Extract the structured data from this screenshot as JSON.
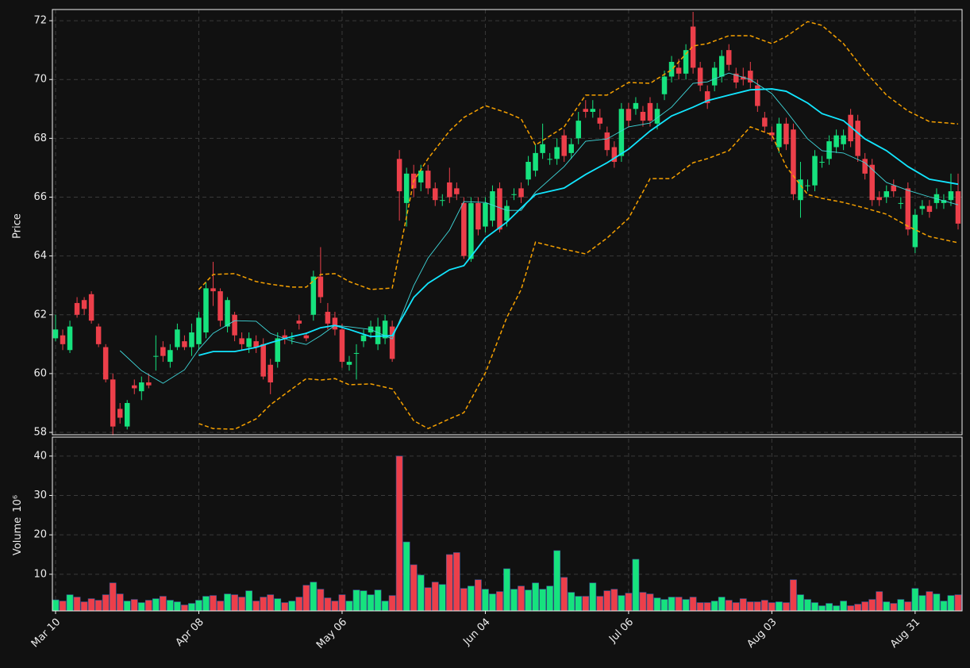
{
  "chart_data": {
    "type": "candlestick",
    "ylabel": "Price",
    "volume_label": "Volume",
    "volume_unit": "10⁶",
    "up_color": "#16e27e",
    "down_color": "#ec3f4a",
    "ylim": [
      57.92,
      72.38
    ],
    "yticks": [
      58,
      60,
      62,
      64,
      66,
      68,
      70,
      72
    ],
    "volume_ylim": [
      0.7,
      44.4
    ],
    "volume_yticks": [
      10,
      20,
      30,
      40
    ],
    "grid": true,
    "categories": [
      "Mar 10",
      null,
      null,
      null,
      null,
      null,
      null,
      null,
      null,
      null,
      null,
      null,
      null,
      null,
      null,
      null,
      null,
      null,
      null,
      null,
      "Apr 08",
      null,
      null,
      null,
      null,
      null,
      null,
      null,
      null,
      null,
      null,
      null,
      null,
      null,
      null,
      null,
      null,
      null,
      null,
      null,
      "May 06",
      null,
      null,
      null,
      null,
      null,
      null,
      null,
      null,
      null,
      null,
      null,
      null,
      null,
      null,
      null,
      null,
      null,
      null,
      null,
      "Jun 04",
      null,
      null,
      null,
      null,
      null,
      null,
      null,
      null,
      null,
      null,
      null,
      null,
      null,
      null,
      null,
      null,
      null,
      null,
      null,
      "Jul 06",
      null,
      null,
      null,
      null,
      null,
      null,
      null,
      null,
      null,
      null,
      null,
      null,
      null,
      null,
      null,
      null,
      null,
      null,
      null,
      "Aug 03",
      null,
      null,
      null,
      null,
      null,
      null,
      null,
      null,
      null,
      null,
      null,
      null,
      null,
      null,
      null,
      null,
      null,
      null,
      null,
      "Aug 31",
      null,
      null,
      null,
      null,
      null,
      null
    ],
    "open": [
      61.2,
      61.3,
      60.8,
      62.4,
      62.5,
      62.7,
      61.6,
      60.9,
      59.8,
      58.8,
      58.2,
      59.6,
      59.4,
      59.7,
      60.6,
      60.9,
      60.4,
      60.9,
      61.1,
      60.9,
      61.0,
      61.4,
      62.9,
      62.8,
      61.6,
      62.0,
      61.2,
      60.9,
      61.1,
      61.0,
      60.3,
      60.4,
      61.3,
      61.2,
      61.8,
      61.3,
      62.0,
      63.3,
      62.1,
      61.9,
      61.5,
      60.3,
      60.7,
      61.1,
      61.4,
      61.0,
      61.2,
      61.6,
      67.3,
      65.8,
      66.8,
      66.5,
      66.9,
      66.3,
      65.9,
      66.5,
      66.3,
      65.8,
      63.9,
      65.8,
      65.0,
      65.2,
      66.3,
      65.2,
      66.1,
      66.3,
      66.6,
      66.9,
      67.5,
      67.3,
      67.3,
      68.1,
      67.5,
      68.0,
      69.0,
      68.9,
      68.7,
      68.2,
      67.7,
      67.4,
      69.0,
      69.0,
      68.9,
      69.2,
      68.5,
      69.5,
      70.1,
      70.4,
      70.2,
      71.8,
      70.4,
      69.6,
      69.8,
      70.1,
      71.0,
      70.2,
      70.1,
      70.3,
      69.8,
      68.7,
      68.2,
      67.7,
      68.5,
      68.3,
      65.9,
      66.4,
      66.4,
      67.2,
      67.3,
      67.7,
      67.8,
      68.8,
      68.6,
      67.3,
      67.1,
      66.0,
      66.0,
      66.4,
      65.8,
      66.3,
      64.3,
      65.6,
      65.7,
      65.8,
      65.8,
      65.9,
      66.2
    ],
    "high": [
      62.0,
      61.5,
      61.8,
      62.6,
      62.6,
      62.8,
      61.7,
      61.0,
      60.0,
      59.0,
      59.1,
      59.8,
      59.9,
      60.0,
      61.3,
      61.1,
      61.0,
      61.7,
      61.3,
      61.7,
      62.1,
      63.1,
      63.8,
      62.9,
      62.6,
      62.1,
      61.4,
      61.4,
      61.3,
      61.2,
      60.5,
      61.4,
      61.5,
      61.4,
      62.0,
      61.4,
      63.5,
      64.3,
      62.4,
      62.1,
      61.7,
      60.6,
      61.0,
      61.5,
      61.8,
      61.9,
      62.0,
      61.8,
      67.6,
      67.0,
      67.1,
      67.1,
      67.1,
      66.5,
      66.1,
      67.0,
      66.5,
      66.0,
      66.0,
      66.0,
      66.0,
      66.4,
      66.5,
      65.9,
      66.3,
      66.5,
      67.4,
      67.8,
      68.5,
      67.5,
      68.0,
      68.3,
      68.0,
      68.9,
      69.3,
      69.3,
      69.0,
      68.4,
      67.9,
      69.2,
      69.2,
      69.4,
      69.1,
      69.4,
      69.2,
      70.3,
      70.8,
      70.7,
      71.2,
      72.3,
      70.6,
      69.8,
      70.6,
      71.0,
      71.2,
      70.4,
      70.4,
      70.6,
      70.0,
      68.9,
      68.4,
      68.7,
      68.7,
      68.5,
      67.2,
      66.6,
      67.6,
      67.4,
      68.1,
      68.3,
      68.3,
      69.0,
      68.8,
      67.5,
      67.3,
      66.2,
      66.4,
      66.6,
      66.0,
      66.5,
      65.6,
      65.9,
      65.9,
      66.3,
      66.1,
      66.8,
      66.8
    ],
    "low": [
      61.1,
      60.8,
      60.7,
      61.9,
      62.0,
      61.7,
      60.9,
      59.7,
      57.9,
      58.3,
      58.1,
      59.3,
      59.1,
      59.5,
      60.1,
      60.4,
      60.2,
      60.8,
      60.8,
      60.6,
      60.8,
      61.2,
      62.3,
      61.6,
      61.4,
      61.1,
      60.8,
      60.7,
      60.7,
      59.8,
      59.3,
      60.2,
      61.0,
      61.0,
      61.5,
      61.1,
      61.8,
      62.4,
      61.5,
      61.3,
      60.2,
      60.1,
      59.8,
      60.9,
      61.2,
      60.8,
      61.0,
      60.4,
      65.2,
      65.0,
      66.0,
      66.2,
      66.1,
      65.7,
      65.7,
      65.8,
      65.9,
      63.9,
      63.8,
      64.7,
      64.8,
      65.0,
      64.8,
      65.0,
      65.9,
      65.8,
      66.4,
      66.7,
      67.3,
      67.1,
      67.1,
      67.2,
      67.3,
      67.8,
      68.7,
      68.7,
      68.3,
      67.4,
      67.0,
      67.2,
      68.4,
      68.8,
      68.4,
      68.4,
      68.3,
      69.3,
      69.9,
      70.0,
      70.0,
      70.2,
      69.6,
      69.0,
      69.6,
      69.9,
      70.3,
      69.7,
      69.8,
      69.7,
      68.9,
      68.2,
      67.9,
      67.5,
      67.6,
      65.9,
      65.3,
      66.2,
      66.2,
      67.0,
      67.1,
      67.5,
      67.6,
      67.7,
      67.2,
      66.6,
      65.7,
      65.7,
      65.8,
      66.0,
      65.6,
      64.7,
      64.1,
      65.4,
      65.3,
      65.6,
      65.6,
      65.7,
      64.9
    ],
    "close": [
      61.5,
      61.0,
      61.6,
      62.0,
      62.2,
      61.8,
      61.0,
      59.8,
      58.2,
      58.5,
      59.0,
      59.5,
      59.7,
      59.6,
      60.6,
      60.6,
      60.8,
      61.5,
      60.9,
      61.4,
      61.9,
      62.9,
      62.8,
      61.8,
      62.5,
      61.3,
      61.0,
      61.2,
      60.9,
      59.9,
      59.7,
      61.2,
      61.2,
      61.2,
      61.7,
      61.2,
      63.3,
      62.6,
      61.7,
      61.5,
      60.4,
      60.4,
      60.7,
      61.3,
      61.6,
      61.6,
      61.8,
      60.5,
      66.2,
      66.8,
      66.3,
      66.9,
      66.3,
      65.9,
      65.9,
      66.0,
      66.1,
      64.0,
      65.8,
      64.9,
      65.8,
      66.2,
      64.9,
      65.7,
      66.1,
      66.0,
      67.2,
      67.5,
      67.8,
      67.3,
      67.7,
      67.4,
      67.8,
      68.6,
      68.9,
      69.0,
      68.5,
      67.6,
      67.2,
      69.0,
      68.6,
      69.2,
      68.6,
      68.6,
      69.0,
      70.1,
      70.6,
      70.2,
      71.0,
      70.4,
      69.8,
      69.2,
      70.4,
      70.8,
      70.5,
      69.9,
      70.0,
      69.9,
      69.1,
      68.4,
      68.1,
      68.5,
      67.8,
      66.1,
      66.6,
      66.4,
      67.4,
      67.2,
      67.9,
      68.1,
      68.1,
      67.9,
      67.4,
      66.8,
      65.9,
      65.9,
      66.2,
      66.2,
      65.8,
      64.9,
      65.4,
      65.7,
      65.5,
      66.1,
      65.9,
      66.2,
      65.1
    ],
    "volume": [
      3.5,
      3.2,
      4.8,
      4.2,
      3.0,
      3.8,
      3.4,
      4.8,
      7.8,
      5.0,
      3.2,
      3.6,
      2.8,
      3.4,
      3.8,
      4.4,
      3.4,
      3.0,
      2.2,
      2.6,
      3.4,
      4.4,
      4.6,
      3.2,
      5.0,
      4.8,
      4.2,
      5.8,
      3.2,
      4.2,
      4.8,
      3.8,
      2.8,
      3.2,
      4.2,
      7.2,
      8.0,
      6.2,
      4.0,
      3.2,
      4.8,
      3.2,
      6.0,
      5.8,
      4.8,
      6.0,
      3.2,
      4.6,
      40,
      18.2,
      12.4,
      9.8,
      6.6,
      8.0,
      7.4,
      15.0,
      15.5,
      6.4,
      7.0,
      8.6,
      6.2,
      5.0,
      5.6,
      11.4,
      6.2,
      7.0,
      6.0,
      7.8,
      6.2,
      7.0,
      16.0,
      9.2,
      5.4,
      4.4,
      4.4,
      7.8,
      4.4,
      5.8,
      6.2,
      4.6,
      5.2,
      13.8,
      5.4,
      5.0,
      4.0,
      3.6,
      4.2,
      4.2,
      3.6,
      4.2,
      2.8,
      2.8,
      3.2,
      4.2,
      3.4,
      2.8,
      3.8,
      3.0,
      3.0,
      3.4,
      2.8,
      3.0,
      2.8,
      8.6,
      4.8,
      3.6,
      2.8,
      2.0,
      2.6,
      2.0,
      3.2,
      2.0,
      2.4,
      3.0,
      3.6,
      5.6,
      3.0,
      2.6,
      3.6,
      3.0,
      6.4,
      4.6,
      5.6,
      5.0,
      3.2,
      4.6,
      4.8
    ],
    "overlays": {
      "x": [
        9,
        12,
        15,
        18,
        20,
        22,
        25,
        28,
        30,
        33,
        35,
        37,
        39,
        41,
        44,
        47,
        50,
        52,
        55,
        57,
        60,
        63,
        65,
        67,
        71,
        74,
        77,
        80,
        83,
        86,
        89,
        91,
        94,
        97,
        100,
        102,
        105,
        107,
        110,
        113,
        116,
        119,
        122,
        126
      ],
      "series": [
        {
          "color": "#3fd9dc",
          "line_style": "thin",
          "values": [
            60.78,
            60.1,
            59.67,
            60.13,
            60.83,
            61.37,
            61.8,
            61.78,
            61.37,
            61.1,
            60.99,
            61.29,
            61.64,
            61.59,
            61.5,
            61.18,
            62.99,
            63.93,
            64.88,
            65.85,
            65.82,
            65.55,
            65.55,
            66.17,
            67.04,
            67.9,
            67.98,
            68.39,
            68.52,
            69.06,
            69.87,
            69.92,
            70.22,
            70.0,
            69.52,
            68.93,
            67.98,
            67.58,
            67.5,
            67.17,
            66.5,
            66.23,
            66.01,
            65.74
          ]
        },
        {
          "color": "#12e6ff",
          "line_style": "bold",
          "values": [
            null,
            null,
            null,
            null,
            60.62,
            60.75,
            60.75,
            60.89,
            61.05,
            61.26,
            61.37,
            61.56,
            61.64,
            61.5,
            61.26,
            61.29,
            62.59,
            63.07,
            63.53,
            63.67,
            64.61,
            65.15,
            65.63,
            66.09,
            66.31,
            66.77,
            67.17,
            67.63,
            68.25,
            68.76,
            69.06,
            69.28,
            69.47,
            69.65,
            69.68,
            69.6,
            69.2,
            68.84,
            68.6,
            67.98,
            67.58,
            67.04,
            66.61,
            66.44
          ]
        },
        {
          "color": "#f5a000",
          "line_style": "dashed",
          "values": [
            null,
            null,
            null,
            null,
            62.86,
            63.37,
            63.4,
            63.13,
            63.04,
            62.94,
            62.94,
            63.37,
            63.4,
            63.13,
            62.86,
            62.91,
            66.55,
            67.31,
            68.25,
            68.71,
            69.11,
            68.87,
            68.66,
            67.77,
            68.39,
            69.47,
            69.47,
            69.9,
            69.87,
            70.33,
            71.14,
            71.22,
            71.49,
            71.49,
            71.22,
            71.46,
            71.97,
            71.84,
            71.22,
            70.28,
            69.47,
            68.93,
            68.57,
            68.49
          ]
        },
        {
          "color": "#f5a000",
          "line_style": "dashed",
          "values": [
            null,
            null,
            null,
            null,
            58.3,
            58.13,
            58.11,
            58.46,
            58.94,
            59.48,
            59.83,
            59.78,
            59.83,
            59.62,
            59.65,
            59.48,
            58.4,
            58.13,
            58.46,
            58.67,
            60.02,
            61.91,
            62.86,
            64.47,
            64.23,
            64.07,
            64.61,
            65.28,
            66.63,
            66.63,
            67.17,
            67.31,
            67.58,
            68.39,
            68.12,
            67.04,
            66.09,
            65.96,
            65.82,
            65.63,
            65.42,
            65.01,
            64.66,
            64.45
          ]
        }
      ]
    }
  }
}
